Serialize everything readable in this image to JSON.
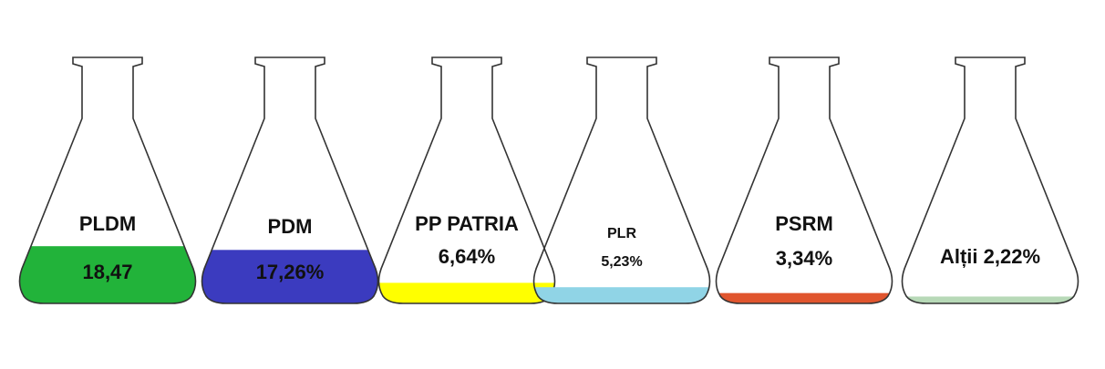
{
  "chart_data": {
    "type": "flask",
    "categories": [
      "PLDM",
      "PDM",
      "PP PATRIA",
      "PLR",
      "PSRM",
      "Alții"
    ],
    "values": [
      18.47,
      17.26,
      6.64,
      5.23,
      3.34,
      2.22
    ],
    "value_labels": [
      "18,47",
      "17,26%",
      "6,64%",
      "5,23%",
      "3,34%",
      "2,22%"
    ],
    "colors": [
      "#22b33a",
      "#3b3bbf",
      "#ffff00",
      "#90d4e6",
      "#e0552e",
      "#b7d9b7"
    ]
  }
}
